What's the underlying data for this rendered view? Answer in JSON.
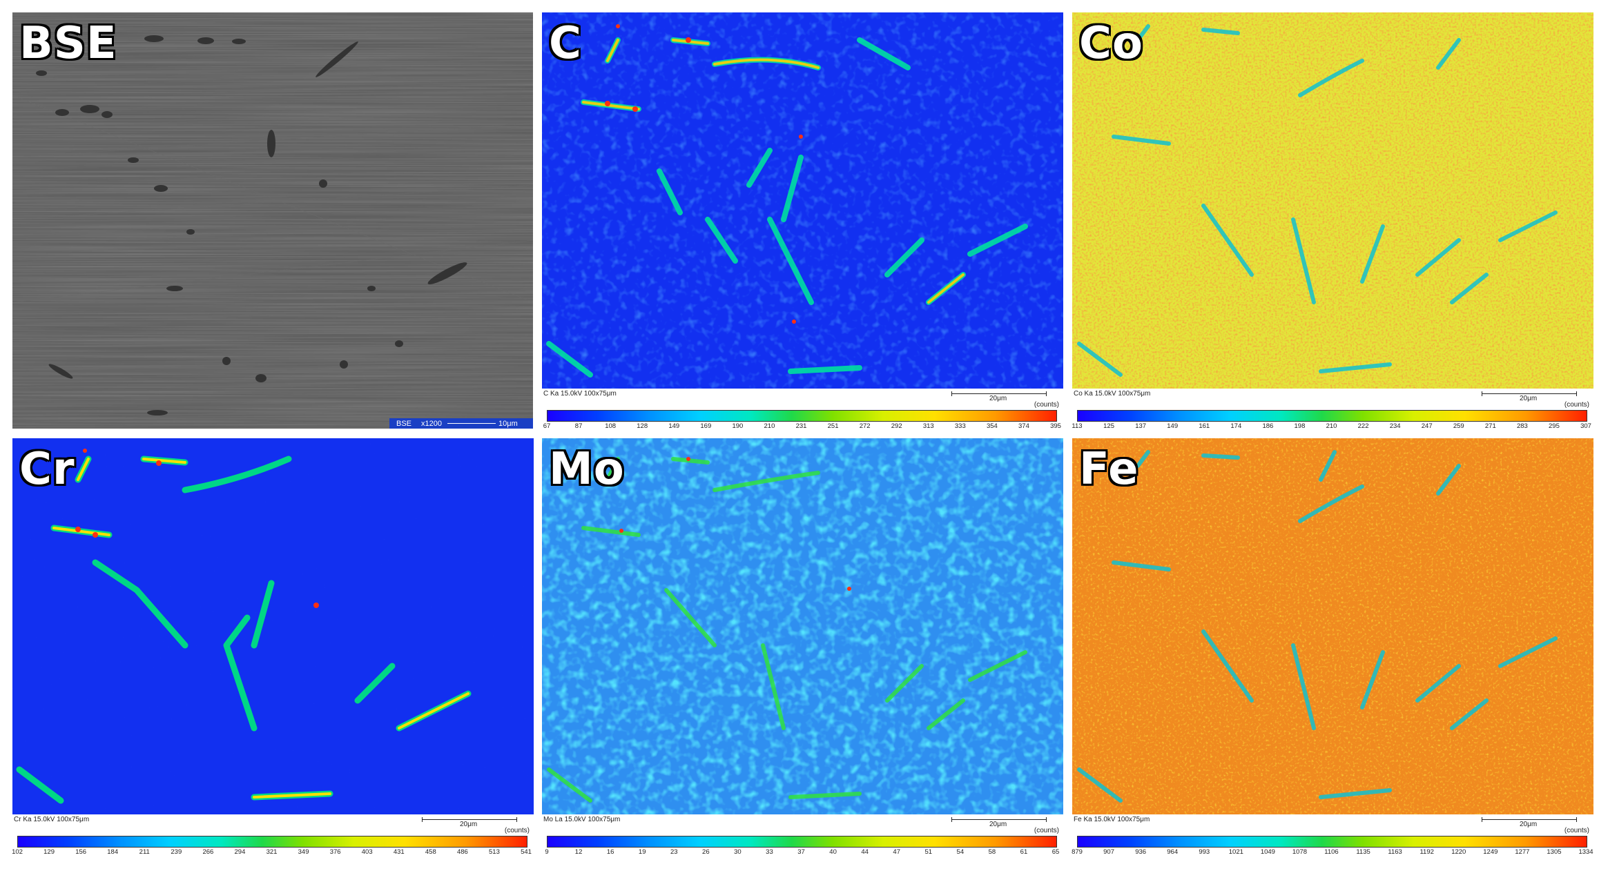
{
  "panels": {
    "bse": {
      "label": "BSE",
      "footer": {
        "mode": "BSE",
        "mag": "x1200",
        "scale": "10μm"
      }
    },
    "c": {
      "label": "C",
      "meta": "C Ka 15.0kV  100x75μm",
      "scale": "20μm",
      "counts": "(counts)",
      "ticks": [
        "67",
        "87",
        "108",
        "128",
        "149",
        "169",
        "190",
        "210",
        "231",
        "251",
        "272",
        "292",
        "313",
        "333",
        "354",
        "374",
        "395"
      ]
    },
    "co": {
      "label": "Co",
      "meta": "Co Ka 15.0kV  100x75μm",
      "scale": "20μm",
      "counts": "(counts)",
      "ticks": [
        "113",
        "125",
        "137",
        "149",
        "161",
        "174",
        "186",
        "198",
        "210",
        "222",
        "234",
        "247",
        "259",
        "271",
        "283",
        "295",
        "307"
      ]
    },
    "cr": {
      "label": "Cr",
      "meta": "Cr Ka 15.0kV  100x75μm",
      "scale": "20μm",
      "counts": "(counts)",
      "ticks": [
        "102",
        "129",
        "156",
        "184",
        "211",
        "239",
        "266",
        "294",
        "321",
        "349",
        "376",
        "403",
        "431",
        "458",
        "486",
        "513",
        "541"
      ]
    },
    "mo": {
      "label": "Mo",
      "meta": "Mo La 15.0kV  100x75μm",
      "scale": "20μm",
      "counts": "(counts)",
      "ticks": [
        "9",
        "12",
        "16",
        "19",
        "23",
        "26",
        "30",
        "33",
        "37",
        "40",
        "44",
        "47",
        "51",
        "54",
        "58",
        "61",
        "65"
      ]
    },
    "fe": {
      "label": "Fe",
      "meta": "Fe Ka 15.0kV  100x75μm",
      "scale": "20μm",
      "counts": "(counts)",
      "ticks": [
        "879",
        "907",
        "936",
        "964",
        "993",
        "1021",
        "1049",
        "1078",
        "1106",
        "1135",
        "1163",
        "1192",
        "1220",
        "1249",
        "1277",
        "1305",
        "1334"
      ]
    }
  },
  "colors": {
    "bse_background": "#5f5f5f",
    "map_blue": "#1230f0",
    "map_yellow": "#e2e63a",
    "map_orange": "#f08a20",
    "map_light_blue": "#2f8ff0"
  }
}
